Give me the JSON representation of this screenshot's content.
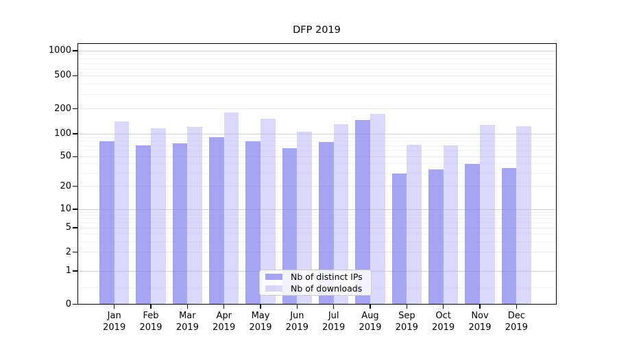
{
  "chart_data": {
    "type": "bar",
    "title": "DFP 2019",
    "categories": [
      "Jan",
      "Feb",
      "Mar",
      "Apr",
      "May",
      "Jun",
      "Jul",
      "Aug",
      "Sep",
      "Oct",
      "Nov",
      "Dec"
    ],
    "category_year": "2019",
    "series": [
      {
        "name": "Nb of distinct IPs",
        "color": "rgba(110,110,238,0.62)",
        "values": [
          80,
          70,
          75,
          90,
          80,
          65,
          78,
          145,
          30,
          34,
          40,
          35
        ]
      },
      {
        "name": "Nb of downloads",
        "color": "rgba(165,165,243,0.42)",
        "values": [
          142,
          117,
          120,
          180,
          152,
          105,
          131,
          175,
          71,
          70,
          127,
          123
        ]
      }
    ],
    "yscale": "symlog",
    "yticks": [
      0,
      1,
      2,
      5,
      10,
      20,
      50,
      100,
      200,
      500,
      1000
    ],
    "ylim": [
      0,
      1200
    ],
    "grid": true,
    "legend_position": "lower center"
  }
}
